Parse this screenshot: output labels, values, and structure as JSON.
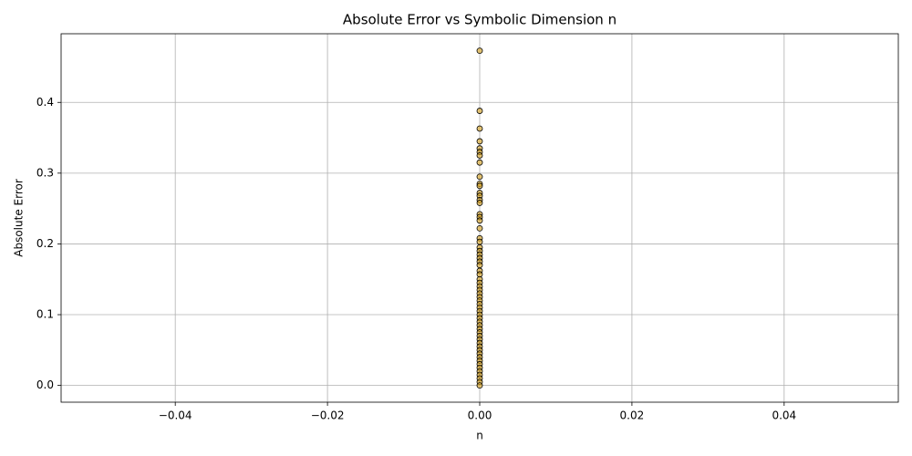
{
  "chart_data": {
    "type": "scatter",
    "title": "Absolute Error vs Symbolic Dimension n",
    "xlabel": "n",
    "ylabel": "Absolute Error",
    "x": [
      0,
      0,
      0,
      0,
      0,
      0,
      0,
      0,
      0,
      0,
      0,
      0,
      0,
      0,
      0,
      0,
      0,
      0,
      0,
      0,
      0,
      0,
      0,
      0,
      0,
      0,
      0,
      0,
      0,
      0,
      0,
      0,
      0,
      0,
      0,
      0,
      0,
      0,
      0,
      0,
      0,
      0,
      0,
      0,
      0,
      0,
      0,
      0,
      0,
      0,
      0,
      0,
      0,
      0,
      0,
      0,
      0,
      0,
      0,
      0
    ],
    "y": [
      0.473,
      0.388,
      0.363,
      0.345,
      0.335,
      0.33,
      0.325,
      0.315,
      0.295,
      0.285,
      0.282,
      0.272,
      0.268,
      0.262,
      0.258,
      0.242,
      0.238,
      0.233,
      0.222,
      0.208,
      0.203,
      0.195,
      0.19,
      0.185,
      0.18,
      0.175,
      0.17,
      0.162,
      0.157,
      0.15,
      0.145,
      0.14,
      0.135,
      0.13,
      0.125,
      0.12,
      0.115,
      0.11,
      0.105,
      0.1,
      0.095,
      0.09,
      0.085,
      0.08,
      0.075,
      0.07,
      0.065,
      0.06,
      0.055,
      0.05,
      0.045,
      0.04,
      0.035,
      0.03,
      0.025,
      0.02,
      0.015,
      0.01,
      0.005,
      0
    ],
    "color": "#daa520",
    "edgecolor": "#000000",
    "xlim": [
      -0.055,
      0.055
    ],
    "xticks": [
      {
        "value": -0.04,
        "label": "−0.04"
      },
      {
        "value": -0.02,
        "label": "−0.02"
      },
      {
        "value": 0,
        "label": "0.00"
      },
      0.02,
      0.04
    ],
    "ylim": [
      -0.0237,
      0.497
    ],
    "yticks": [
      {
        "value": 0,
        "label": "0.0"
      },
      0.1,
      0.2,
      0.3,
      0.4
    ],
    "grid": true
  }
}
